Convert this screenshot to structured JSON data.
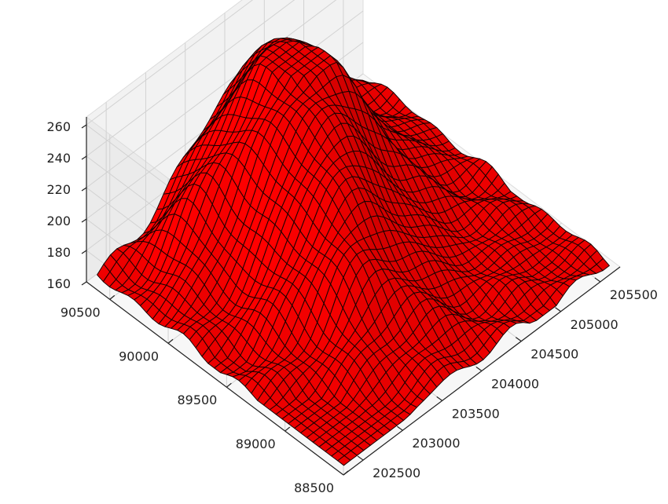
{
  "chart_data": {
    "type": "surface3d",
    "surface_color": "#ff0000",
    "edge_color": "#1a0000",
    "pane_color": "#f2f2f2",
    "x_axis": {
      "ticks": [
        202500,
        203000,
        203500,
        204000,
        204500,
        205000,
        205500
      ],
      "tick_labels": [
        "202500",
        "203000",
        "203500",
        "204000",
        "204500",
        "205000",
        "205500"
      ],
      "range": [
        202250,
        205750
      ]
    },
    "y_axis": {
      "ticks": [
        88500,
        89000,
        89500,
        90000,
        90500
      ],
      "tick_labels": [
        "88500",
        "89000",
        "89500",
        "90000",
        "90500"
      ],
      "range": [
        88500,
        90700
      ]
    },
    "z_axis": {
      "ticks": [
        160,
        180,
        200,
        220,
        240,
        260
      ],
      "tick_labels": [
        "160",
        "180",
        "200",
        "220",
        "240",
        "260"
      ],
      "range": [
        160,
        265
      ]
    },
    "surface": {
      "grid_size": [
        40,
        40
      ],
      "base_elevation": 163,
      "features": [
        {
          "kind": "main_peak",
          "x": 204200,
          "y": 90200,
          "height": 100
        },
        {
          "kind": "ridge",
          "x": 203600,
          "y": 89500,
          "height": 50
        },
        {
          "kind": "shoulder",
          "x": 203200,
          "y": 90300,
          "height": 30
        }
      ]
    }
  }
}
